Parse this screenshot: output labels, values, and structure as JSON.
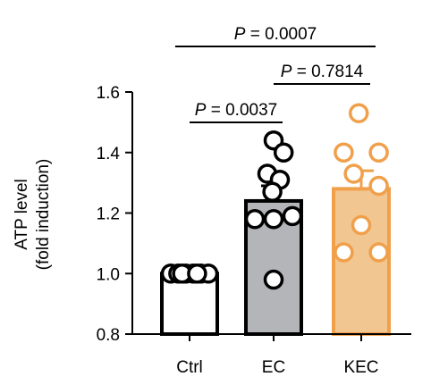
{
  "chart_data": {
    "type": "bar",
    "categories": [
      "Ctrl",
      "EC",
      "KEC"
    ],
    "values": [
      1.0,
      1.24,
      1.28
    ],
    "errors": [
      0.0,
      0.05,
      0.06
    ],
    "ylabel_lines": [
      "ATP level",
      "(fold induction)"
    ],
    "ylim": [
      0.8,
      1.6
    ],
    "yticks": [
      0.8,
      1.0,
      1.2,
      1.4,
      1.6
    ],
    "ytick_labels": [
      "0.8",
      "1.0",
      "1.2",
      "1.4",
      "1.6"
    ],
    "bar_fills": [
      "#ffffff",
      "#b3b5b8",
      "#f2c690"
    ],
    "bar_strokes": [
      "#000000",
      "#000000",
      "#f0a04b"
    ],
    "point_strokes": [
      "#000000",
      "#000000",
      "#f0a04b"
    ],
    "points": [
      [
        1.0,
        1.0,
        1.0,
        1.0,
        1.0,
        1.0,
        1.0,
        1.0
      ],
      [
        1.44,
        1.4,
        1.33,
        1.31,
        1.27,
        1.19,
        1.18,
        1.18,
        0.98
      ],
      [
        1.53,
        1.4,
        1.4,
        1.33,
        1.29,
        1.16,
        1.07,
        1.07
      ]
    ],
    "point_x_offsets": [
      [
        -0.3,
        -0.18,
        -0.06,
        0.06,
        0.18,
        0.3,
        -0.12,
        0.12
      ],
      [
        0.0,
        0.16,
        -0.1,
        0.1,
        -0.02,
        0.3,
        -0.3,
        0.0,
        0.0
      ],
      [
        -0.04,
        -0.28,
        0.28,
        -0.12,
        0.28,
        0.0,
        -0.28,
        0.28
      ]
    ],
    "significance": [
      {
        "from": 0,
        "to": 1,
        "label": "P = 0.0037"
      },
      {
        "from": 1,
        "to": 2,
        "label": "P = 0.7814"
      },
      {
        "from": 0,
        "to": 2,
        "label": "P = 0.0007"
      }
    ]
  }
}
